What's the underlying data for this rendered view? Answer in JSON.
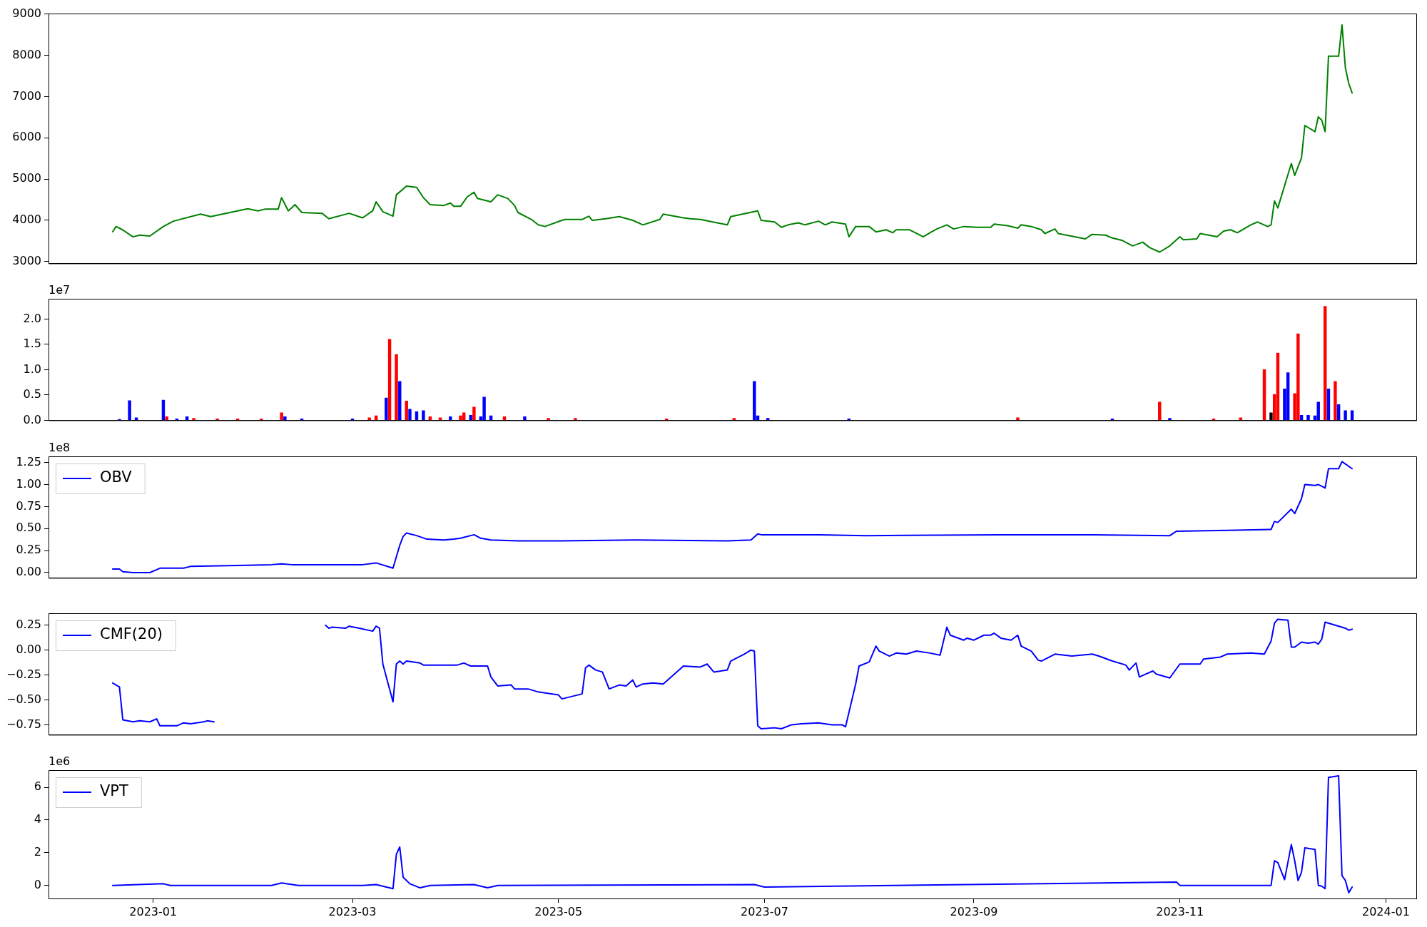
{
  "chart_data": [
    {
      "type": "line",
      "xlim": [
        "2022-12-01",
        "2024-01-10"
      ],
      "xticks": [
        "2023-01",
        "2023-03",
        "2023-05",
        "2023-07",
        "2023-09",
        "2023-11",
        "2024-01"
      ],
      "ylim": [
        2955,
        9015
      ],
      "yticks": [
        3000,
        4000,
        5000,
        6000,
        7000,
        8000,
        9000
      ],
      "tick_labels": "y",
      "x": [
        "2022-12-20",
        "2022-12-21",
        "2022-12-23",
        "2022-12-26",
        "2022-12-28",
        "2022-12-31",
        "2023-01-04",
        "2023-01-07",
        "2023-01-15",
        "2023-01-18",
        "2023-01-29",
        "2023-02-01",
        "2023-02-03",
        "2023-02-07",
        "2023-02-08",
        "2023-02-10",
        "2023-02-12",
        "2023-02-14",
        "2023-02-20",
        "2023-02-22",
        "2023-02-28",
        "2023-03-04",
        "2023-03-07",
        "2023-03-08",
        "2023-03-10",
        "2023-03-13",
        "2023-03-14",
        "2023-03-17",
        "2023-03-20",
        "2023-03-22",
        "2023-03-24",
        "2023-03-28",
        "2023-03-30",
        "2023-03-31",
        "2023-04-02",
        "2023-04-04",
        "2023-04-06",
        "2023-04-07",
        "2023-04-11",
        "2023-04-13",
        "2023-04-16",
        "2023-04-18",
        "2023-04-19",
        "2023-04-23",
        "2023-04-25",
        "2023-04-27",
        "2023-05-02",
        "2023-05-03",
        "2023-05-08",
        "2023-05-10",
        "2023-05-11",
        "2023-05-15",
        "2023-05-19",
        "2023-05-23",
        "2023-05-26",
        "2023-05-31",
        "2023-06-01",
        "2023-06-05",
        "2023-06-07",
        "2023-06-09",
        "2023-06-12",
        "2023-06-17",
        "2023-06-20",
        "2023-06-21",
        "2023-06-29",
        "2023-06-30",
        "2023-07-04",
        "2023-07-06",
        "2023-07-08",
        "2023-07-11",
        "2023-07-13",
        "2023-07-17",
        "2023-07-19",
        "2023-07-21",
        "2023-07-25",
        "2023-07-26",
        "2023-07-28",
        "2023-08-01",
        "2023-08-03",
        "2023-08-06",
        "2023-08-08",
        "2023-08-09",
        "2023-08-13",
        "2023-08-17",
        "2023-08-19",
        "2023-08-21",
        "2023-08-24",
        "2023-08-26",
        "2023-08-29",
        "2023-09-02",
        "2023-09-06",
        "2023-09-07",
        "2023-09-11",
        "2023-09-14",
        "2023-09-15",
        "2023-09-18",
        "2023-09-21",
        "2023-09-22",
        "2023-09-25",
        "2023-09-26",
        "2023-10-04",
        "2023-10-06",
        "2023-10-10",
        "2023-10-12",
        "2023-10-15",
        "2023-10-18",
        "2023-10-21",
        "2023-10-23",
        "2023-10-26",
        "2023-10-29",
        "2023-11-01",
        "2023-11-02",
        "2023-11-06",
        "2023-11-07",
        "2023-11-12",
        "2023-11-14",
        "2023-11-16",
        "2023-11-18",
        "2023-11-22",
        "2023-11-24",
        "2023-11-27",
        "2023-11-28",
        "2023-11-29",
        "2023-11-30",
        "2023-12-04",
        "2023-12-05",
        "2023-12-07",
        "2023-12-08",
        "2023-12-11",
        "2023-12-12",
        "2023-12-13",
        "2023-12-14",
        "2023-12-15",
        "2023-12-18",
        "2023-12-19",
        "2023-12-20",
        "2023-12-21",
        "2023-12-22"
      ],
      "series": [
        {
          "color": "#008000",
          "values": [
            3723,
            3850,
            3766,
            3600,
            3640,
            3620,
            3850,
            3980,
            4150,
            4090,
            4280,
            4230,
            4270,
            4270,
            4550,
            4230,
            4380,
            4190,
            4170,
            4040,
            4170,
            4060,
            4230,
            4450,
            4210,
            4100,
            4620,
            4830,
            4800,
            4550,
            4380,
            4360,
            4420,
            4340,
            4340,
            4570,
            4680,
            4530,
            4450,
            4620,
            4530,
            4360,
            4190,
            4020,
            3890,
            3850,
            4000,
            4020,
            4020,
            4100,
            4000,
            4040,
            4090,
            4000,
            3890,
            4020,
            4150,
            4090,
            4060,
            4040,
            4020,
            3940,
            3890,
            4090,
            4230,
            4000,
            3960,
            3830,
            3890,
            3940,
            3890,
            3980,
            3890,
            3960,
            3910,
            3600,
            3850,
            3850,
            3720,
            3770,
            3700,
            3770,
            3770,
            3600,
            3700,
            3790,
            3890,
            3790,
            3850,
            3830,
            3830,
            3910,
            3870,
            3810,
            3890,
            3850,
            3770,
            3680,
            3790,
            3680,
            3550,
            3660,
            3640,
            3570,
            3510,
            3380,
            3470,
            3340,
            3230,
            3380,
            3600,
            3530,
            3550,
            3680,
            3600,
            3740,
            3770,
            3700,
            3890,
            3960,
            3850,
            3890,
            4470,
            4300,
            5380,
            5090,
            5510,
            6300,
            6150,
            6510,
            6430,
            6150,
            7980,
            7980,
            8740,
            7700,
            7320,
            7090
          ]
        }
      ]
    },
    {
      "type": "bar",
      "ylabel": "1e7",
      "xlim": [
        "2022-12-01",
        "2024-01-10"
      ],
      "xticks": [
        "2023-01",
        "2023-03",
        "2023-05",
        "2023-07",
        "2023-09",
        "2023-11",
        "2024-01"
      ],
      "ylim": [
        0,
        2.4
      ],
      "yticks": [
        {
          "value": 0,
          "label": "0.0"
        },
        {
          "value": 0.5,
          "label": "0.5"
        },
        {
          "value": 1,
          "label": "1.0"
        },
        {
          "value": 1.5,
          "label": "1.5"
        },
        {
          "value": 2,
          "label": "2.0"
        }
      ],
      "tick_labels": "y",
      "x": [
        "2022-12-22",
        "2022-12-25",
        "2022-12-27",
        "2023-01-04",
        "2023-01-05",
        "2023-01-08",
        "2023-01-11",
        "2023-01-13",
        "2023-01-20",
        "2023-01-26",
        "2023-02-02",
        "2023-02-08",
        "2023-02-09",
        "2023-02-14",
        "2023-03-01",
        "2023-03-06",
        "2023-03-08",
        "2023-03-11",
        "2023-03-12",
        "2023-03-14",
        "2023-03-15",
        "2023-03-17",
        "2023-03-18",
        "2023-03-20",
        "2023-03-22",
        "2023-03-24",
        "2023-03-27",
        "2023-03-30",
        "2023-04-02",
        "2023-04-03",
        "2023-04-05",
        "2023-04-06",
        "2023-04-08",
        "2023-04-09",
        "2023-04-11",
        "2023-04-15",
        "2023-04-21",
        "2023-04-28",
        "2023-05-06",
        "2023-06-02",
        "2023-06-22",
        "2023-06-28",
        "2023-06-29",
        "2023-07-02",
        "2023-07-26",
        "2023-09-14",
        "2023-10-12",
        "2023-10-26",
        "2023-10-29",
        "2023-11-11",
        "2023-11-19",
        "2023-11-26",
        "2023-11-28",
        "2023-11-29",
        "2023-11-30",
        "2023-12-02",
        "2023-12-03",
        "2023-12-05",
        "2023-12-06",
        "2023-12-07",
        "2023-12-09",
        "2023-12-11",
        "2023-12-12",
        "2023-12-14",
        "2023-12-15",
        "2023-12-17",
        "2023-12-18",
        "2023-12-20",
        "2023-12-22"
      ],
      "series": [
        {
          "values": [
            0.02,
            0.39,
            0.05,
            0.4,
            0.07,
            0.03,
            0.07,
            0.04,
            0.03,
            0.03,
            0.03,
            0.15,
            0.07,
            0.03,
            0.03,
            0.05,
            0.09,
            0.44,
            1.6,
            1.3,
            0.77,
            0.38,
            0.22,
            0.17,
            0.19,
            0.07,
            0.05,
            0.07,
            0.09,
            0.15,
            0.1,
            0.26,
            0.07,
            0.46,
            0.09,
            0.07,
            0.07,
            0.04,
            0.04,
            0.03,
            0.04,
            0.77,
            0.09,
            0.04,
            0.03,
            0.05,
            0.03,
            0.36,
            0.04,
            0.03,
            0.05,
            1.0,
            0.15,
            0.51,
            1.33,
            0.62,
            0.94,
            0.53,
            1.71,
            0.1,
            0.1,
            0.09,
            0.36,
            2.25,
            0.62,
            0.77,
            0.31,
            0.19,
            0.19
          ],
          "colors": [
            "#0000ff",
            "#0000ff",
            "#0000ff",
            "#0000ff",
            "#ff0000",
            "#0000ff",
            "#0000ff",
            "#ff0000",
            "#ff0000",
            "#ff0000",
            "#ff0000",
            "#ff0000",
            "#0000ff",
            "#0000ff",
            "#0000ff",
            "#ff0000",
            "#ff0000",
            "#0000ff",
            "#ff0000",
            "#ff0000",
            "#0000ff",
            "#ff0000",
            "#0000ff",
            "#0000ff",
            "#0000ff",
            "#ff0000",
            "#ff0000",
            "#0000ff",
            "#ff0000",
            "#ff0000",
            "#0000ff",
            "#ff0000",
            "#0000ff",
            "#0000ff",
            "#0000ff",
            "#ff0000",
            "#0000ff",
            "#ff0000",
            "#ff0000",
            "#ff0000",
            "#ff0000",
            "#0000ff",
            "#0000ff",
            "#0000ff",
            "#0000ff",
            "#ff0000",
            "#0000ff",
            "#ff0000",
            "#0000ff",
            "#ff0000",
            "#ff0000",
            "#ff0000",
            "#000000",
            "#ff0000",
            "#ff0000",
            "#0000ff",
            "#0000ff",
            "#ff0000",
            "#ff0000",
            "#0000ff",
            "#0000ff",
            "#0000ff",
            "#0000ff",
            "#ff0000",
            "#0000ff",
            "#ff0000",
            "#0000ff",
            "#0000ff",
            "#0000ff"
          ]
        }
      ]
    },
    {
      "type": "line",
      "ylabel": "1e8",
      "legend": "top left",
      "xlim": [
        "2022-12-01",
        "2024-01-10"
      ],
      "xticks": [
        "2023-01",
        "2023-03",
        "2023-05",
        "2023-07",
        "2023-09",
        "2023-11",
        "2024-01"
      ],
      "ylim": [
        -0.06,
        1.32
      ],
      "yticks": [
        {
          "value": 0,
          "label": "0.00"
        },
        {
          "value": 0.25,
          "label": "0.25"
        },
        {
          "value": 0.5,
          "label": "0.50"
        },
        {
          "value": 0.75,
          "label": "0.75"
        },
        {
          "value": 1,
          "label": "1.00"
        },
        {
          "value": 1.25,
          "label": "1.25"
        }
      ],
      "tick_labels": "y",
      "x": [
        "2022-12-20",
        "2022-12-22",
        "2022-12-23",
        "2022-12-26",
        "2022-12-31",
        "2023-01-03",
        "2023-01-10",
        "2023-01-12",
        "2023-01-26",
        "2023-02-05",
        "2023-02-08",
        "2023-02-11",
        "2023-03-04",
        "2023-03-08",
        "2023-03-13",
        "2023-03-15",
        "2023-03-16",
        "2023-03-17",
        "2023-03-20",
        "2023-03-23",
        "2023-03-28",
        "2023-03-31",
        "2023-04-02",
        "2023-04-06",
        "2023-04-08",
        "2023-04-11",
        "2023-04-19",
        "2023-05-02",
        "2023-05-24",
        "2023-06-20",
        "2023-06-27",
        "2023-06-29",
        "2023-06-30",
        "2023-07-17",
        "2023-07-31",
        "2023-09-09",
        "2023-10-06",
        "2023-10-29",
        "2023-10-31",
        "2023-11-15",
        "2023-11-28",
        "2023-11-29",
        "2023-11-30",
        "2023-12-04",
        "2023-12-05",
        "2023-12-07",
        "2023-12-08",
        "2023-12-11",
        "2023-12-12",
        "2023-12-13",
        "2023-12-14",
        "2023-12-15",
        "2023-12-18",
        "2023-12-19",
        "2023-12-22"
      ],
      "series": [
        {
          "name": "OBV",
          "color": "#0000ff",
          "values": [
            0.04,
            0.04,
            0.01,
            0.0,
            0.0,
            0.05,
            0.05,
            0.07,
            0.08,
            0.09,
            0.1,
            0.09,
            0.09,
            0.11,
            0.05,
            0.31,
            0.41,
            0.45,
            0.42,
            0.38,
            0.37,
            0.38,
            0.39,
            0.43,
            0.39,
            0.37,
            0.36,
            0.36,
            0.37,
            0.36,
            0.37,
            0.44,
            0.43,
            0.43,
            0.42,
            0.43,
            0.43,
            0.42,
            0.47,
            0.48,
            0.49,
            0.58,
            0.57,
            0.72,
            0.67,
            0.84,
            1.0,
            0.99,
            1.0,
            0.98,
            0.96,
            1.18,
            1.18,
            1.26,
            1.18
          ]
        }
      ]
    },
    {
      "type": "line",
      "legend": "top left",
      "xlim": [
        "2022-12-01",
        "2024-01-10"
      ],
      "xticks": [
        "2023-01",
        "2023-03",
        "2023-05",
        "2023-07",
        "2023-09",
        "2023-11",
        "2024-01"
      ],
      "ylim": [
        -0.85,
        0.37
      ],
      "yticks": [
        {
          "value": -0.75,
          "label": "−0.75"
        },
        {
          "value": -0.5,
          "label": "−0.50"
        },
        {
          "value": -0.25,
          "label": "−0.25"
        },
        {
          "value": 0,
          "label": "0.00"
        },
        {
          "value": 0.25,
          "label": "0.25"
        }
      ],
      "tick_labels": "y",
      "x": [
        "2022-12-20",
        "2022-12-22",
        "2022-12-23",
        "2022-12-26",
        "2022-12-28",
        "2022-12-31",
        "2023-01-02",
        "2023-01-03",
        "2023-01-08",
        "2023-01-10",
        "2023-01-12",
        "2023-01-16",
        "2023-01-17",
        "2023-01-19",
        "2023-02-01",
        "2023-02-21",
        "2023-02-22",
        "2023-02-23",
        "2023-02-27",
        "2023-02-28",
        "2023-03-03",
        "2023-03-07",
        "2023-03-08",
        "2023-03-09",
        "2023-03-10",
        "2023-03-13",
        "2023-03-14",
        "2023-03-15",
        "2023-03-16",
        "2023-03-17",
        "2023-03-21",
        "2023-03-22",
        "2023-04-01",
        "2023-04-03",
        "2023-04-05",
        "2023-04-10",
        "2023-04-11",
        "2023-04-13",
        "2023-04-17",
        "2023-04-18",
        "2023-04-22",
        "2023-04-25",
        "2023-05-01",
        "2023-05-02",
        "2023-05-08",
        "2023-05-09",
        "2023-05-10",
        "2023-05-12",
        "2023-05-14",
        "2023-05-16",
        "2023-05-19",
        "2023-05-21",
        "2023-05-23",
        "2023-05-24",
        "2023-05-26",
        "2023-05-29",
        "2023-06-01",
        "2023-06-05",
        "2023-06-07",
        "2023-06-12",
        "2023-06-14",
        "2023-06-16",
        "2023-06-20",
        "2023-06-21",
        "2023-06-25",
        "2023-06-27",
        "2023-06-28",
        "2023-06-29",
        "2023-06-30",
        "2023-07-04",
        "2023-07-06",
        "2023-07-09",
        "2023-07-12",
        "2023-07-17",
        "2023-07-21",
        "2023-07-24",
        "2023-07-25",
        "2023-07-28",
        "2023-07-29",
        "2023-08-01",
        "2023-08-03",
        "2023-08-04",
        "2023-08-07",
        "2023-08-09",
        "2023-08-12",
        "2023-08-15",
        "2023-08-19",
        "2023-08-22",
        "2023-08-24",
        "2023-08-25",
        "2023-08-29",
        "2023-08-30",
        "2023-09-01",
        "2023-09-04",
        "2023-09-06",
        "2023-09-07",
        "2023-09-09",
        "2023-09-12",
        "2023-09-14",
        "2023-09-15",
        "2023-09-18",
        "2023-09-20",
        "2023-09-21",
        "2023-09-25",
        "2023-09-30",
        "2023-10-06",
        "2023-10-08",
        "2023-10-12",
        "2023-10-16",
        "2023-10-17",
        "2023-10-19",
        "2023-10-20",
        "2023-10-22",
        "2023-10-24",
        "2023-10-25",
        "2023-10-29",
        "2023-11-01",
        "2023-11-07",
        "2023-11-08",
        "2023-11-13",
        "2023-11-15",
        "2023-11-22",
        "2023-11-26",
        "2023-11-28",
        "2023-11-29",
        "2023-11-30",
        "2023-12-03",
        "2023-12-04",
        "2023-12-05",
        "2023-12-07",
        "2023-12-09",
        "2023-12-11",
        "2023-12-12",
        "2023-12-13",
        "2023-12-14",
        "2023-12-20",
        "2023-12-21",
        "2023-12-22"
      ],
      "series": [
        {
          "name": "CMF(20)",
          "color": "#0000ff",
          "values": [
            -0.33,
            -0.37,
            -0.7,
            -0.72,
            -0.71,
            -0.72,
            -0.69,
            -0.76,
            -0.76,
            -0.73,
            -0.74,
            -0.72,
            -0.71,
            -0.72,
            null,
            0.25,
            0.22,
            0.23,
            0.22,
            0.24,
            0.22,
            0.19,
            0.24,
            0.22,
            -0.14,
            -0.52,
            -0.14,
            -0.11,
            -0.14,
            -0.11,
            -0.13,
            -0.15,
            -0.15,
            -0.13,
            -0.16,
            -0.16,
            -0.27,
            -0.36,
            -0.35,
            -0.39,
            -0.39,
            -0.42,
            -0.45,
            -0.49,
            -0.44,
            -0.18,
            -0.15,
            -0.2,
            -0.22,
            -0.39,
            -0.35,
            -0.36,
            -0.3,
            -0.37,
            -0.34,
            -0.33,
            -0.34,
            -0.22,
            -0.16,
            -0.17,
            -0.14,
            -0.22,
            -0.2,
            -0.11,
            -0.04,
            0.0,
            -0.01,
            -0.76,
            -0.79,
            -0.78,
            -0.79,
            -0.75,
            -0.74,
            -0.73,
            -0.75,
            -0.75,
            -0.77,
            -0.34,
            -0.16,
            -0.12,
            0.04,
            -0.01,
            -0.06,
            -0.03,
            -0.04,
            -0.01,
            -0.03,
            -0.05,
            0.23,
            0.15,
            0.1,
            0.12,
            0.1,
            0.15,
            0.15,
            0.17,
            0.12,
            0.1,
            0.15,
            0.04,
            -0.01,
            -0.1,
            -0.11,
            -0.04,
            -0.06,
            -0.04,
            -0.06,
            -0.11,
            -0.15,
            -0.2,
            -0.13,
            -0.27,
            -0.24,
            -0.21,
            -0.24,
            -0.28,
            -0.14,
            -0.14,
            -0.09,
            -0.07,
            -0.04,
            -0.03,
            -0.04,
            0.09,
            0.27,
            0.31,
            0.3,
            0.03,
            0.03,
            0.08,
            0.07,
            0.08,
            0.06,
            0.11,
            0.28,
            0.22,
            0.2,
            0.21
          ]
        }
      ]
    },
    {
      "type": "line",
      "ylabel": "1e6",
      "legend": "top left",
      "xlim": [
        "2022-12-01",
        "2024-01-10"
      ],
      "xticks": [
        "2023-01",
        "2023-03",
        "2023-05",
        "2023-07",
        "2023-09",
        "2023-11",
        "2024-01"
      ],
      "ylim": [
        -0.8,
        7.05
      ],
      "yticks": [
        0,
        2,
        4,
        6
      ],
      "x": [
        "2022-12-20",
        "2023-01-04",
        "2023-01-06",
        "2023-02-05",
        "2023-02-08",
        "2023-02-13",
        "2023-03-04",
        "2023-03-08",
        "2023-03-13",
        "2023-03-14",
        "2023-03-15",
        "2023-03-16",
        "2023-03-18",
        "2023-03-21",
        "2023-03-24",
        "2023-04-06",
        "2023-04-10",
        "2023-04-13",
        "2023-06-28",
        "2023-07-01",
        "2023-10-31",
        "2023-11-01",
        "2023-11-28",
        "2023-11-29",
        "2023-11-30",
        "2023-12-02",
        "2023-12-04",
        "2023-12-05",
        "2023-12-06",
        "2023-12-07",
        "2023-12-08",
        "2023-12-11",
        "2023-12-12",
        "2023-12-13",
        "2023-12-14",
        "2023-12-15",
        "2023-12-18",
        "2023-12-19",
        "2023-12-20",
        "2023-12-21",
        "2023-12-22"
      ],
      "series": [
        {
          "name": "VPT",
          "color": "#0000ff",
          "values": [
            0,
            0.1,
            0,
            0,
            0.15,
            0,
            0,
            0.05,
            -0.2,
            1.9,
            2.35,
            0.5,
            0.1,
            -0.15,
            0,
            0.05,
            -0.15,
            0,
            0.05,
            -0.1,
            0.2,
            0,
            0,
            1.5,
            1.4,
            0.35,
            2.5,
            1.5,
            0.3,
            0.8,
            2.3,
            2.2,
            0,
            -0.05,
            -0.2,
            6.6,
            6.7,
            0.6,
            0.3,
            -0.45,
            -0.1
          ]
        }
      ]
    }
  ]
}
